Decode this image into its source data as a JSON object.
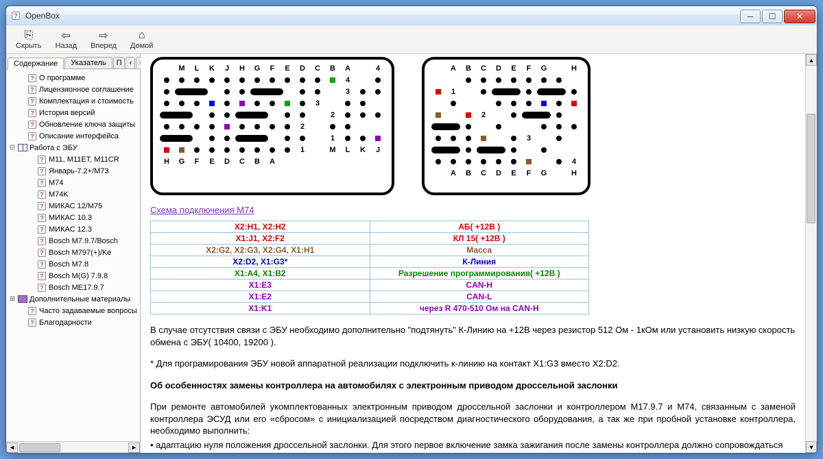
{
  "window": {
    "title": "OpenBox"
  },
  "toolbar": {
    "hide": "Скрыть",
    "back": "Назад",
    "forward": "Вперед",
    "home": "Домой"
  },
  "tabs": {
    "content": "Содержание",
    "index": "Указатель",
    "search": "П",
    "nav1": "‹",
    "nav2": "›"
  },
  "tree": {
    "items": [
      {
        "depth": 1,
        "icon": "q",
        "label": "О программе"
      },
      {
        "depth": 1,
        "icon": "q",
        "label": "Лицензионное соглашение"
      },
      {
        "depth": 1,
        "icon": "q",
        "label": "Комплектация и стоимость"
      },
      {
        "depth": 1,
        "icon": "q",
        "label": "История версий"
      },
      {
        "depth": 1,
        "icon": "q",
        "label": "Обновление ключа защиты"
      },
      {
        "depth": 1,
        "icon": "q",
        "label": "Описание интерфейса"
      },
      {
        "depth": 0,
        "icon": "book-open",
        "exp": "⊟",
        "label": "Работа с ЭБУ"
      },
      {
        "depth": 2,
        "icon": "q",
        "label": "M11, M11ET, M11CR"
      },
      {
        "depth": 2,
        "icon": "q",
        "label": "Январь-7.2+/M73"
      },
      {
        "depth": 2,
        "icon": "q",
        "label": "M74"
      },
      {
        "depth": 2,
        "icon": "q",
        "label": "M74K"
      },
      {
        "depth": 2,
        "icon": "q",
        "label": "МИКАС 12/M75"
      },
      {
        "depth": 2,
        "icon": "q",
        "label": "МИКАС 10.3"
      },
      {
        "depth": 2,
        "icon": "q",
        "label": "МИКАС 12.3"
      },
      {
        "depth": 2,
        "icon": "q",
        "label": "Bosch M7.9.7/Bosch"
      },
      {
        "depth": 2,
        "icon": "q",
        "label": "Bosch M797(+)/Ke"
      },
      {
        "depth": 2,
        "icon": "q",
        "label": "Bosch M7.8"
      },
      {
        "depth": 2,
        "icon": "q",
        "label": "Bosch M(G) 7.9.8"
      },
      {
        "depth": 2,
        "icon": "q",
        "label": "Bosch ME17.9.7"
      },
      {
        "depth": 0,
        "icon": "book-closed",
        "exp": "⊞",
        "label": "Дополнительные материалы"
      },
      {
        "depth": 1,
        "icon": "q",
        "label": "Часто задаваемые вопросы"
      },
      {
        "depth": 1,
        "icon": "q",
        "label": "Благодарности"
      }
    ]
  },
  "link_m74": "Схема подключения M74",
  "conn_table": [
    {
      "cls": "c-red",
      "l": "X2:H1, X2:H2",
      "r": "АБ( +12В )"
    },
    {
      "cls": "c-red",
      "l": "X1:J1, X2:F2",
      "r": "КЛ 15( +12В )"
    },
    {
      "cls": "c-brown",
      "l": "X2:G2, X2:G3, X2:G4, X1:H1",
      "r": "Масса"
    },
    {
      "cls": "c-blue",
      "l": "X2:D2, X1:G3*",
      "r": "К-Линия"
    },
    {
      "cls": "c-green",
      "l": "X1:A4, X1:B2",
      "r": "Разрешение программирования( +12В )"
    },
    {
      "cls": "c-purple",
      "l": "X1:E3",
      "r": "CAN-H"
    },
    {
      "cls": "c-purple",
      "l": "X1:E2",
      "r": "CAN-L"
    },
    {
      "cls": "c-purple",
      "l": "X1:K1",
      "r": "через R 470-510 Ом на CAN-H"
    }
  ],
  "text": {
    "p1": "В случае отсутствия связи с ЭБУ необходимо дополнительно \"подтянуть\" К-Линию на +12В через резистор 512 Ом - 1кОм или установить низкую скорость обмена с ЭБУ( 10400, 19200 ).",
    "p2": "* Для програмирования ЭБУ новой аппаратной реализации подключить к-линию на контакт X1:G3 вместо X2:D2.",
    "h1": "Об особенностях замены контроллера на автомобилях с электронным приводом дроссельной заслонки",
    "p3": "При ремонте автомобилей укомплектованных электронным приводом дроссельной заслонки и контроллером M17.9.7 и М74, связанным с заменой контроллера ЭСУД или его «сбросом» с инициализацией посредством диагностического оборудования, а так же при пробной установке контроллера, необходимо выполнить:",
    "b1": "адаптацию нуля положения дроссельной заслонки. Для этого первое включение замка зажигания после замены контроллера должно сопровождаться"
  },
  "connectors": {
    "left": {
      "top_labels": [
        "M",
        "L",
        "K",
        "J",
        "H",
        "G",
        "F",
        "E",
        "D",
        "C",
        "B",
        "A"
      ],
      "bottom_labels": [
        "M",
        "L",
        "K",
        "J",
        "H",
        "G",
        "F",
        "E",
        "D",
        "C",
        "B",
        "A"
      ],
      "row_labels_left": [
        "4",
        "3",
        "2",
        "1"
      ],
      "row_labels_right": [
        "4",
        "3",
        "2",
        "1"
      ],
      "rows": [
        [
          "dot",
          "dot",
          "dot",
          "dot",
          "dot",
          "dot",
          "dot",
          "dot",
          "dot",
          "dot",
          "dot",
          {
            "sq": "#00aa00"
          }
        ],
        [
          "dot",
          "dot",
          "pill",
          "pill",
          "pill",
          "dot",
          "dot",
          "pill",
          "pill",
          "pill",
          "dot",
          "dot"
        ],
        [
          "dot",
          "dot",
          "dot",
          "dot",
          "dot",
          {
            "sq": "#0000ff"
          },
          "dot",
          {
            "sq": "#9000c0"
          },
          "dot",
          "dot",
          {
            "sq": "#00aa00"
          },
          "dot"
        ],
        [
          "dot",
          "dot",
          "pill",
          "pill",
          "pill",
          "dot",
          "dot",
          "pill",
          "pill",
          "pill",
          "dot",
          "dot"
        ],
        [
          "dot",
          "dot",
          "dot",
          "dot",
          "dot",
          "dot",
          "dot",
          {
            "sq": "#9000c0"
          },
          "dot",
          "dot",
          "dot",
          "dot"
        ],
        [
          "dot",
          "dot",
          "pill",
          "pill",
          "pill",
          "dot",
          "dot",
          "pill",
          "pill",
          "pill",
          "dot",
          "dot"
        ],
        [
          "dot",
          "dot",
          {
            "sq": "#9000c0"
          },
          {
            "sq": "#e00000"
          },
          {
            "sq": "#8b5a2b"
          },
          "dot",
          "dot",
          "dot",
          "dot",
          "dot",
          "dot",
          "dot"
        ]
      ]
    },
    "right": {
      "top_labels": [
        "A",
        "B",
        "C",
        "D",
        "E",
        "F",
        "G",
        "",
        "H"
      ],
      "bottom_labels": [
        "A",
        "B",
        "C",
        "D",
        "E",
        "F",
        "G",
        "",
        "H"
      ],
      "row_labels_left": [
        "",
        "",
        "",
        ""
      ],
      "row_labels_right": [
        "1",
        "2",
        "3",
        "4"
      ],
      "rows": [
        [
          "dot",
          "dot",
          "dot",
          "dot",
          "dot",
          "dot",
          "dot",
          "",
          {
            "sq": "#e00000"
          }
        ],
        [
          "dot",
          "pill-r",
          "pill-r",
          "dot",
          "pill-r",
          "pill-r",
          "dot",
          "",
          "dot"
        ],
        [
          "dot",
          "dot",
          "dot",
          {
            "sq": "#0000ff"
          },
          "dot",
          {
            "sq": "#e00000"
          },
          {
            "sq": "#8b5a2b"
          },
          "",
          {
            "sq": "#e00000"
          }
        ],
        [
          "dot",
          "pill-r",
          "pill-r",
          "dot",
          "pill-r",
          "pill-r",
          "dot",
          "",
          "dot"
        ],
        [
          "dot",
          "dot",
          "dot",
          "dot",
          "dot",
          "dot",
          {
            "sq": "#8b5a2b"
          },
          "",
          "dot"
        ],
        [
          "dot",
          "pill-r",
          "pill-r",
          "dot",
          "pill-r",
          "pill-r",
          "dot",
          "",
          "dot"
        ],
        [
          "dot",
          "dot",
          "dot",
          "dot",
          "dot",
          "dot",
          {
            "sq": "#8b5a2b"
          },
          "",
          "dot"
        ]
      ]
    }
  }
}
